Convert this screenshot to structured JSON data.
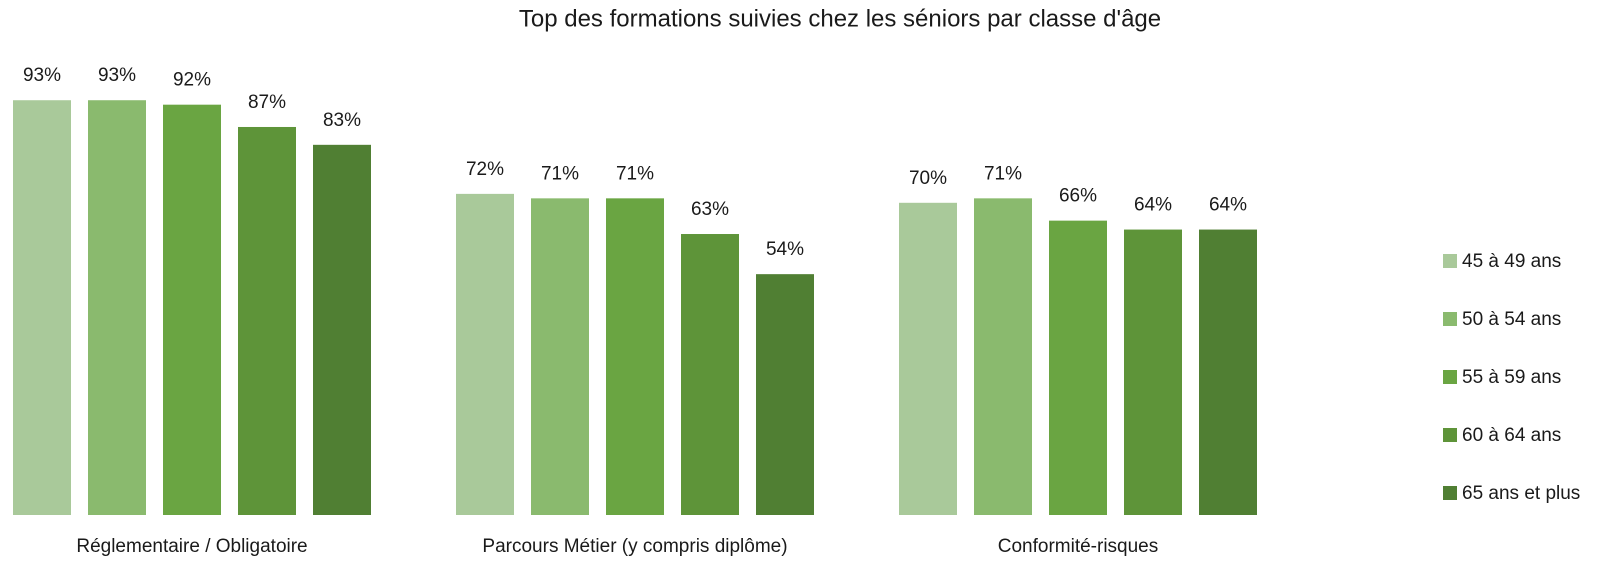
{
  "chart_data": {
    "type": "bar",
    "title": "Top des formations suivies chez les séniors par classe d'âge",
    "categories": [
      "Réglementaire / Obligatoire",
      "Parcours Métier (y compris diplôme)",
      "Conformité-risques"
    ],
    "ylim": [
      0,
      100
    ],
    "legend": "right",
    "series": [
      {
        "name": "45 à 49 ans",
        "color": "#a9c99a",
        "values": [
          93,
          72,
          70
        ],
        "value_labels": [
          "93%",
          "72%",
          "70%"
        ]
      },
      {
        "name": "50 à 54 ans",
        "color": "#8aba6e",
        "values": [
          93,
          71,
          71
        ],
        "value_labels": [
          "93%",
          "71%",
          "71%"
        ]
      },
      {
        "name": "55 à 59 ans",
        "color": "#6aa542",
        "values": [
          92,
          71,
          66
        ],
        "value_labels": [
          "92%",
          "71%",
          "66%"
        ]
      },
      {
        "name": "60 à 64 ans",
        "color": "#5e9439",
        "values": [
          87,
          63,
          64
        ],
        "value_labels": [
          "87%",
          "63%",
          "64%"
        ]
      },
      {
        "name": "65 ans et plus",
        "color": "#507f33",
        "values": [
          83,
          54,
          64
        ],
        "value_labels": [
          "83%",
          "54%",
          "64%"
        ]
      }
    ]
  }
}
